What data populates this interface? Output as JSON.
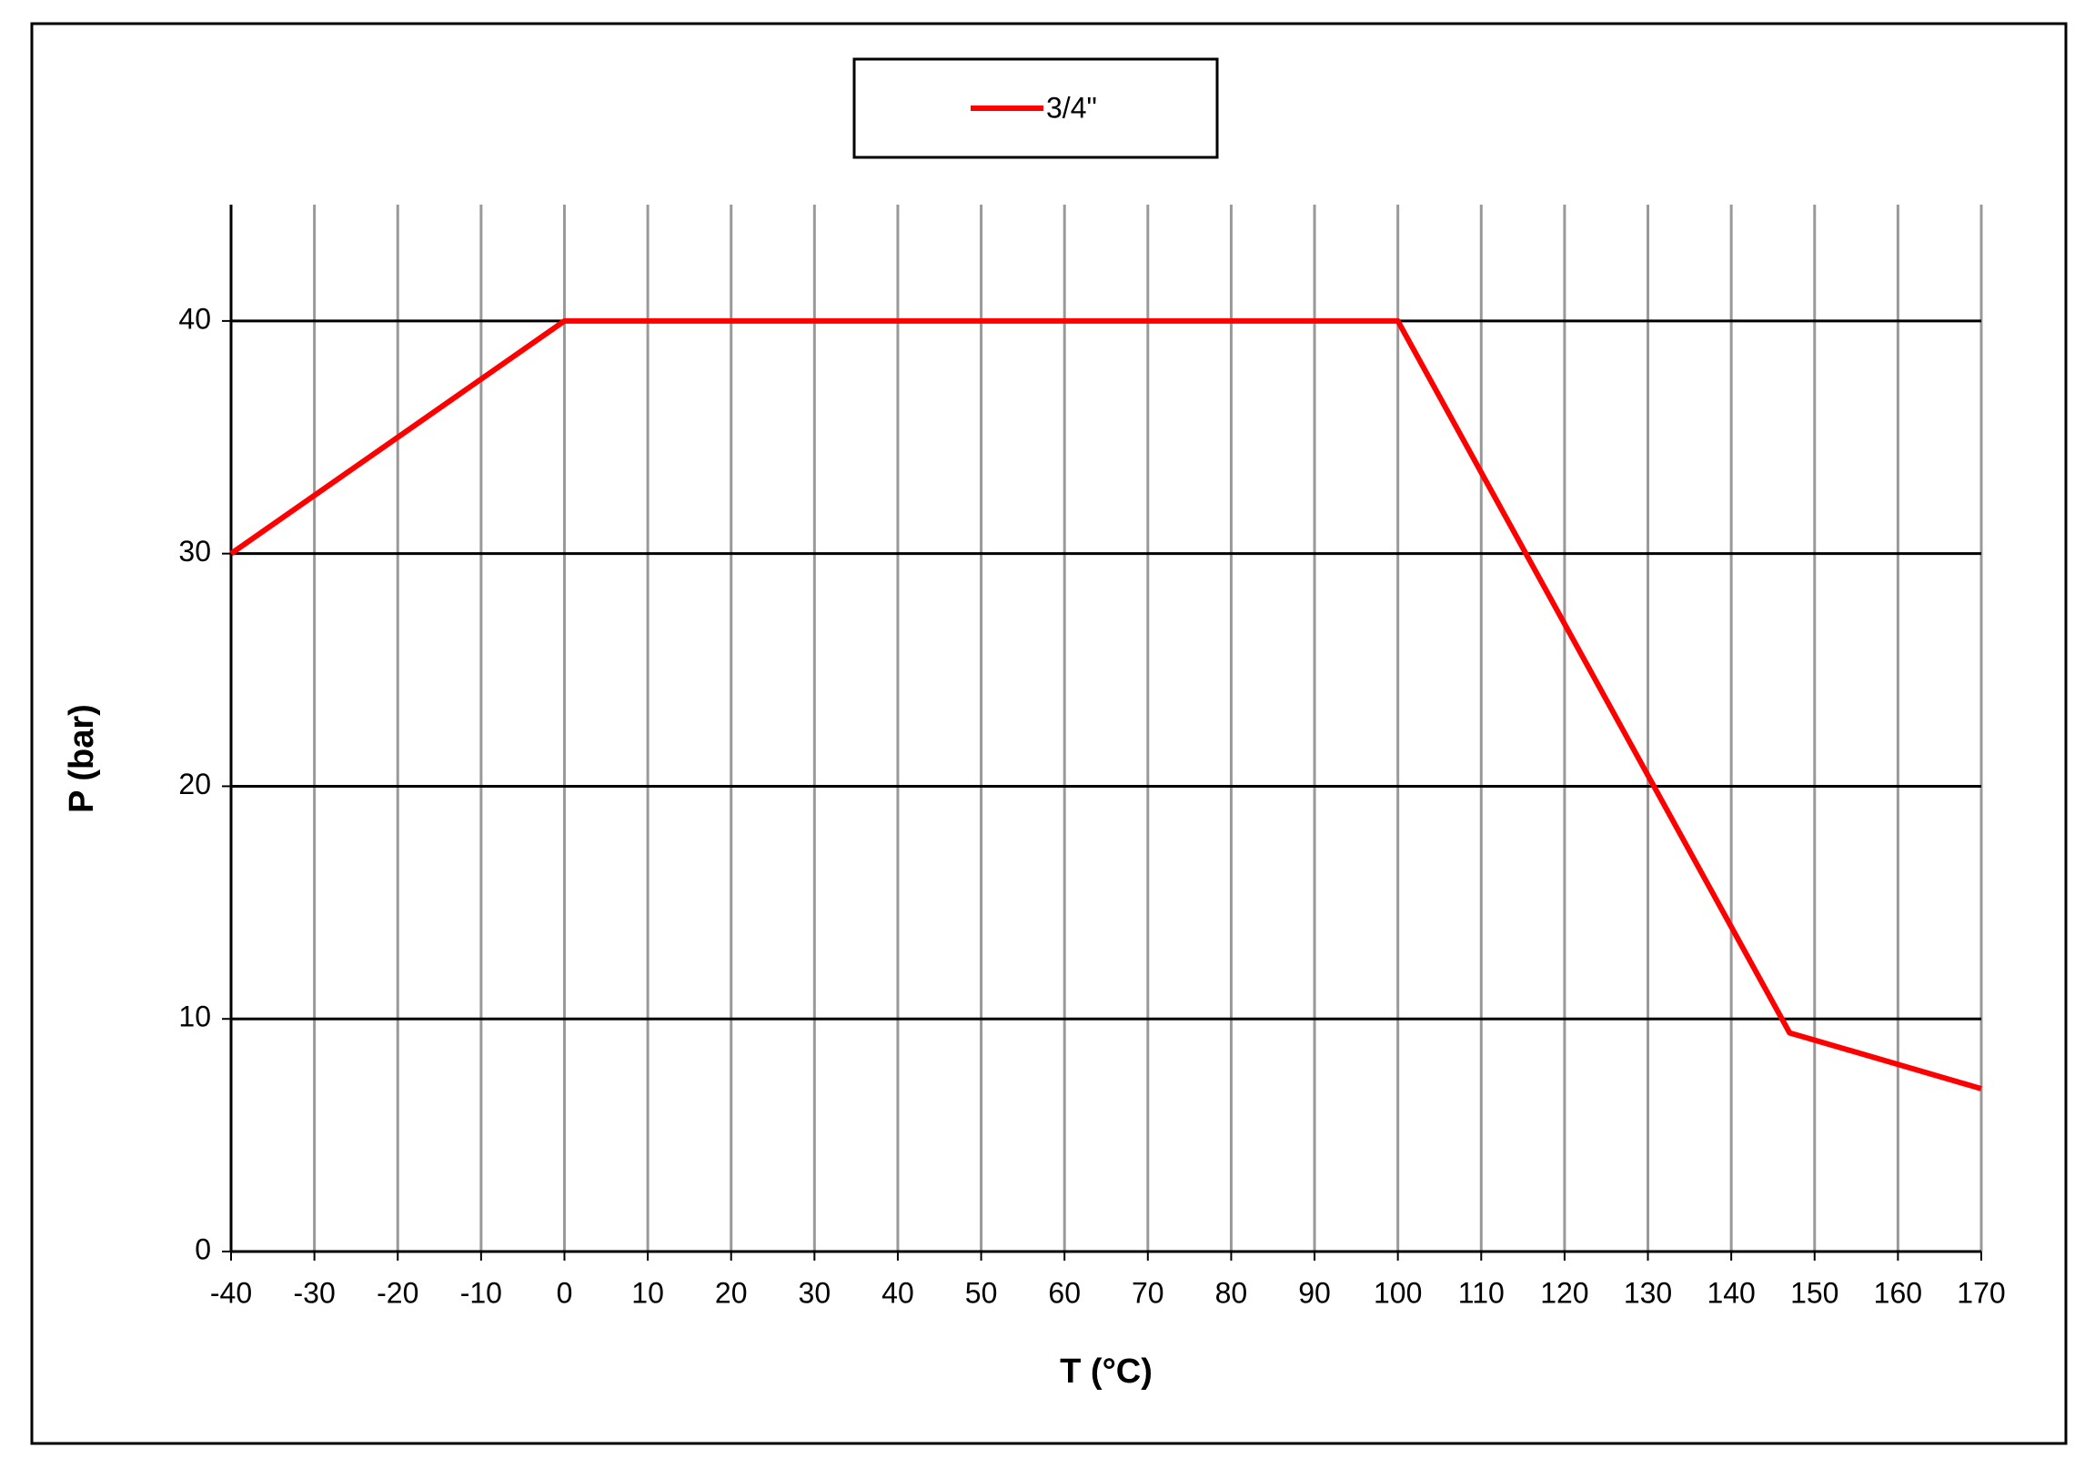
{
  "chart_data": {
    "type": "line",
    "x_label": "T (°C)",
    "y_label": "P (bar)",
    "x": [
      -40,
      0,
      100,
      147,
      170
    ],
    "series": [
      {
        "name": "3/4\"",
        "color": "#ff0000",
        "values": [
          30,
          40,
          40,
          9.4,
          7
        ]
      }
    ],
    "xlim": [
      -40,
      170
    ],
    "xticks": [
      -40,
      -30,
      -20,
      -10,
      0,
      10,
      20,
      30,
      40,
      50,
      60,
      70,
      80,
      90,
      100,
      110,
      120,
      130,
      140,
      150,
      160,
      170
    ],
    "ylim": [
      0,
      45
    ],
    "yticks": [
      0,
      10,
      20,
      30,
      40
    ],
    "grid": true,
    "legend": "top"
  }
}
